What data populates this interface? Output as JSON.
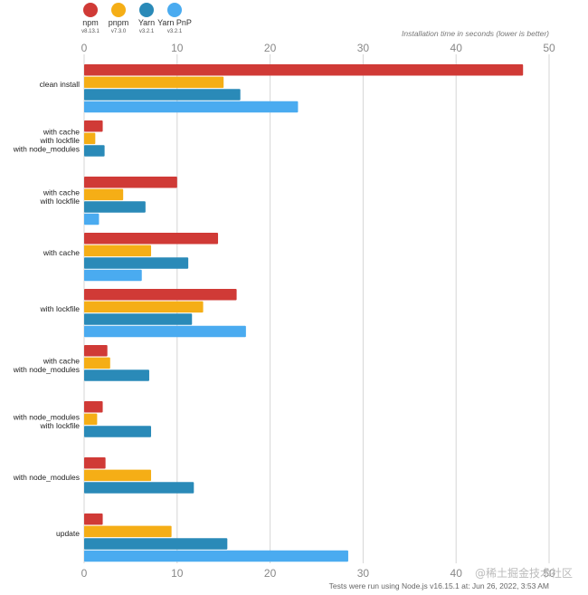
{
  "chart_data": {
    "type": "bar",
    "orientation": "horizontal",
    "xlabel": "Installation time in seconds (lower is better)",
    "xlim": [
      0,
      50
    ],
    "xticks": [
      0,
      10,
      20,
      30,
      40,
      50
    ],
    "grid": true,
    "legend_position": "top-left",
    "categories": [
      [
        "clean install"
      ],
      [
        "with cache",
        "with lockfile",
        "with node_modules"
      ],
      [
        "with cache",
        "with lockfile"
      ],
      [
        "with cache"
      ],
      [
        "with lockfile"
      ],
      [
        "with cache",
        "with node_modules"
      ],
      [
        "with node_modules",
        "with lockfile"
      ],
      [
        "with node_modules"
      ],
      [
        "update"
      ]
    ],
    "series": [
      {
        "name": "npm",
        "version": "v8.13.1",
        "color": "#d03a36",
        "values": [
          47.2,
          2.0,
          10.0,
          14.4,
          16.4,
          2.5,
          2.0,
          2.3,
          2.0
        ]
      },
      {
        "name": "pnpm",
        "version": "v7.3.0",
        "color": "#f5ae16",
        "values": [
          15.0,
          1.2,
          4.2,
          7.2,
          12.8,
          2.8,
          1.4,
          7.2,
          9.4
        ]
      },
      {
        "name": "Yarn",
        "version": "v3.2.1",
        "color": "#2a8ab8",
        "values": [
          16.8,
          2.2,
          6.6,
          11.2,
          11.6,
          7.0,
          7.2,
          11.8,
          15.4
        ]
      },
      {
        "name": "Yarn PnP",
        "version": "v3.2.1",
        "color": "#4aabf0",
        "values": [
          23.0,
          null,
          1.6,
          6.2,
          17.4,
          null,
          null,
          null,
          28.4
        ]
      }
    ],
    "footnote": "Tests were run using Node.js v16.15.1 at: Jun 26, 2022, 3:53 AM"
  },
  "watermark": "@稀土掘金技术社区"
}
